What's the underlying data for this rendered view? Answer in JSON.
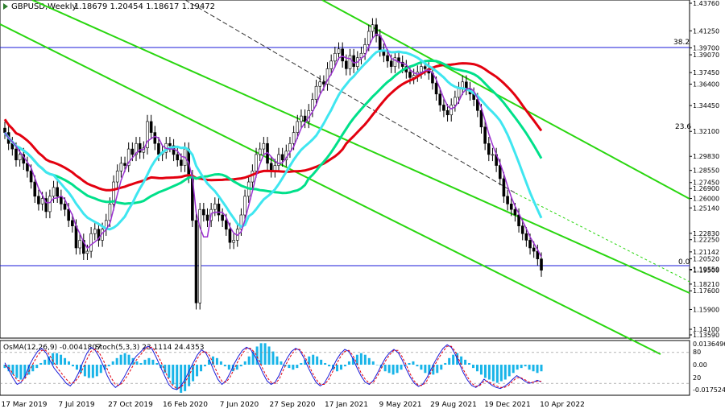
{
  "header": {
    "symbol": "GBPUSD,Weekly",
    "ohlc": "1.18679 1.20454 1.18617 1.19472"
  },
  "indicator": {
    "osma_label": "OsMA(12,26,9) -0.0041807",
    "stoch_label": "Stoch(5,3,3) 23.1114 24.4353",
    "y_labels": [
      "0.0136496",
      "80",
      "0.00",
      "20",
      "-0.017524"
    ],
    "osma_hist": [
      -0.002,
      -0.004,
      -0.006,
      -0.008,
      -0.009,
      -0.008,
      -0.006,
      -0.004,
      -0.002,
      0.001,
      0.003,
      0.005,
      0.007,
      0.007,
      0.006,
      0.004,
      0.002,
      -0.001,
      -0.003,
      -0.005,
      -0.007,
      -0.008,
      -0.008,
      -0.007,
      -0.005,
      -0.003,
      -0.001,
      0.002,
      0.004,
      0.006,
      0.007,
      0.006,
      0.004,
      0.002,
      0.001,
      0.003,
      0.004,
      0.003,
      0.001,
      -0.002,
      -0.005,
      -0.008,
      -0.012,
      -0.015,
      -0.017,
      -0.016,
      -0.013,
      -0.01,
      -0.007,
      -0.004,
      -0.001,
      0.003,
      0.005,
      0.004,
      0.002,
      -0.001,
      -0.003,
      -0.004,
      -0.003,
      -0.001,
      0.002,
      0.005,
      0.008,
      0.011,
      0.013,
      0.013,
      0.011,
      0.008,
      0.005,
      0.002,
      -0.001,
      -0.002,
      -0.003,
      -0.002,
      0.001,
      0.003,
      0.005,
      0.006,
      0.005,
      0.003,
      0.001,
      -0.001,
      -0.003,
      -0.004,
      -0.003,
      -0.001,
      0.002,
      0.004,
      0.006,
      0.007,
      0.006,
      0.004,
      0.002,
      0.0,
      -0.002,
      -0.004,
      -0.005,
      -0.006,
      -0.005,
      -0.003,
      -0.001,
      0.001,
      0.002,
      -0.001,
      -0.003,
      -0.005,
      -0.006,
      -0.006,
      -0.005,
      -0.003,
      0.001,
      0.004,
      0.006,
      0.007,
      0.005,
      0.003,
      0.001,
      -0.002,
      -0.004,
      -0.006,
      -0.008,
      -0.009,
      -0.01,
      -0.011,
      -0.01,
      -0.009,
      -0.007,
      -0.005,
      -0.003,
      -0.002,
      -0.001,
      -0.003,
      -0.004,
      -0.005,
      -0.004
    ],
    "stoch_main": [
      60,
      45,
      30,
      18,
      22,
      35,
      55,
      70,
      82,
      88,
      80,
      65,
      50,
      40,
      30,
      20,
      15,
      25,
      40,
      60,
      78,
      90,
      85,
      72,
      55,
      35,
      20,
      12,
      18,
      30,
      45,
      60,
      72,
      80,
      88,
      92,
      86,
      70,
      52,
      35,
      18,
      10,
      8,
      15,
      28,
      44,
      60,
      75,
      85,
      80,
      65,
      45,
      28,
      18,
      25,
      40,
      58,
      72,
      84,
      90,
      86,
      74,
      58,
      40,
      25,
      18,
      22,
      36,
      55,
      70,
      82,
      88,
      84,
      70,
      52,
      36,
      22,
      15,
      20,
      34,
      50,
      66,
      78,
      86,
      82,
      68,
      50,
      34,
      22,
      18,
      26,
      40,
      56,
      70,
      80,
      86,
      80,
      66,
      48,
      32,
      20,
      14,
      18,
      30,
      46,
      62,
      76,
      88,
      95,
      90,
      76,
      58,
      40,
      26,
      16,
      12,
      18,
      28,
      22,
      16,
      12,
      10,
      14,
      20,
      28,
      35,
      30,
      24,
      20,
      22,
      26,
      23
    ],
    "stoch_signal": [
      55,
      50,
      38,
      26,
      24,
      30,
      45,
      60,
      74,
      84,
      84,
      74,
      60,
      48,
      38,
      28,
      20,
      22,
      32,
      48,
      66,
      82,
      86,
      80,
      66,
      48,
      30,
      18,
      16,
      24,
      36,
      50,
      64,
      74,
      84,
      90,
      90,
      80,
      64,
      46,
      28,
      16,
      10,
      12,
      22,
      36,
      52,
      68,
      80,
      82,
      74,
      56,
      38,
      24,
      22,
      32,
      48,
      64,
      78,
      88,
      88,
      80,
      66,
      48,
      32,
      22,
      20,
      28,
      46,
      62,
      76,
      86,
      86,
      76,
      60,
      42,
      28,
      18,
      18,
      26,
      42,
      58,
      72,
      82,
      84,
      74,
      58,
      40,
      28,
      20,
      22,
      34,
      50,
      64,
      76,
      84,
      84,
      72,
      56,
      38,
      24,
      16,
      16,
      24,
      40,
      56,
      70,
      82,
      92,
      92,
      82,
      64,
      46,
      32,
      20,
      14,
      16,
      24,
      24,
      19,
      15,
      12,
      12,
      16,
      24,
      31,
      31,
      27,
      22,
      22,
      24,
      24
    ]
  },
  "chart_data": {
    "type": "candlestick",
    "title": "GBPUSD,Weekly",
    "ohlc_last": {
      "open": 1.18679,
      "high": 1.20454,
      "low": 1.18617,
      "close": 1.19472
    },
    "ylim": [
      1.1359,
      1.4376
    ],
    "price_axis_labels": [
      "1.43760",
      "1.41250",
      "1.39700",
      "1.39070",
      "1.37450",
      "1.36400",
      "1.34450",
      "1.32100",
      "1.29830",
      "1.28550",
      "1.27450",
      "1.26900",
      "1.26000",
      "1.25140",
      "1.22830",
      "1.22250",
      "1.21142",
      "1.20520",
      "1.19500",
      "1.19559",
      "1.18210",
      "1.17600",
      "1.15900",
      "1.14100",
      "1.13590"
    ],
    "x_tick_labels": [
      "17 Mar 2019",
      "7 Jul 2019",
      "27 Oct 2019",
      "16 Feb 2020",
      "7 Jun 2020",
      "27 Sep 2020",
      "17 Jan 2021",
      "9 May 2021",
      "29 Aug 2021",
      "19 Dec 2021",
      "10 Apr 2022"
    ],
    "fib_levels": [
      {
        "label": "38.2",
        "price": 1.397
      },
      {
        "label": "23.6",
        "price": 1.321
      },
      {
        "label": "0.0",
        "price": 1.1955
      }
    ],
    "series": [
      {
        "name": "GBPUSD",
        "close": [
          1.32,
          1.31,
          1.305,
          1.295,
          1.3,
          1.292,
          1.285,
          1.275,
          1.262,
          1.255,
          1.26,
          1.248,
          1.262,
          1.27,
          1.262,
          1.255,
          1.25,
          1.24,
          1.235,
          1.215,
          1.222,
          1.21,
          1.212,
          1.228,
          1.232,
          1.222,
          1.232,
          1.24,
          1.255,
          1.275,
          1.285,
          1.292,
          1.29,
          1.305,
          1.3,
          1.31,
          1.302,
          1.306,
          1.33,
          1.32,
          1.31,
          1.3,
          1.302,
          1.31,
          1.308,
          1.3,
          1.295,
          1.29,
          1.305,
          1.28,
          1.24,
          1.165,
          1.25,
          1.245,
          1.24,
          1.25,
          1.255,
          1.245,
          1.24,
          1.232,
          1.22,
          1.222,
          1.232,
          1.245,
          1.262,
          1.275,
          1.285,
          1.3,
          1.305,
          1.31,
          1.292,
          1.285,
          1.29,
          1.3,
          1.295,
          1.303,
          1.31,
          1.32,
          1.33,
          1.335,
          1.33,
          1.34,
          1.35,
          1.362,
          1.366,
          1.364,
          1.378,
          1.385,
          1.392,
          1.396,
          1.385,
          1.378,
          1.39,
          1.38,
          1.388,
          1.392,
          1.4,
          1.412,
          1.418,
          1.408,
          1.395,
          1.39,
          1.385,
          1.38,
          1.388,
          1.384,
          1.38,
          1.375,
          1.37,
          1.372,
          1.375,
          1.38,
          1.378,
          1.374,
          1.365,
          1.355,
          1.345,
          1.34,
          1.336,
          1.345,
          1.352,
          1.36,
          1.366,
          1.36,
          1.355,
          1.35,
          1.34,
          1.325,
          1.31,
          1.3,
          1.3,
          1.29,
          1.278,
          1.262,
          1.255,
          1.25,
          1.245,
          1.235,
          1.228,
          1.222,
          1.215,
          1.212,
          1.205,
          1.19472
        ]
      },
      {
        "name": "red MA",
        "type": "moving-average"
      },
      {
        "name": "green MA",
        "type": "moving-average"
      },
      {
        "name": "cyan MA",
        "type": "moving-average"
      },
      {
        "name": "purple MA",
        "type": "moving-average"
      }
    ],
    "colors": {
      "candles": "#000000",
      "red_ma": "#e3000f",
      "green_ma": "#00e08a",
      "cyan_ma": "#3fe6f0",
      "purple_ma": "#9b30d0",
      "channel": "#29d60f",
      "fib_line": "#1a1ad8",
      "osma_hist": "#18b4e8",
      "stoch_main": "#1a1ad8",
      "stoch_signal": "#e3000f"
    },
    "grid": false
  }
}
